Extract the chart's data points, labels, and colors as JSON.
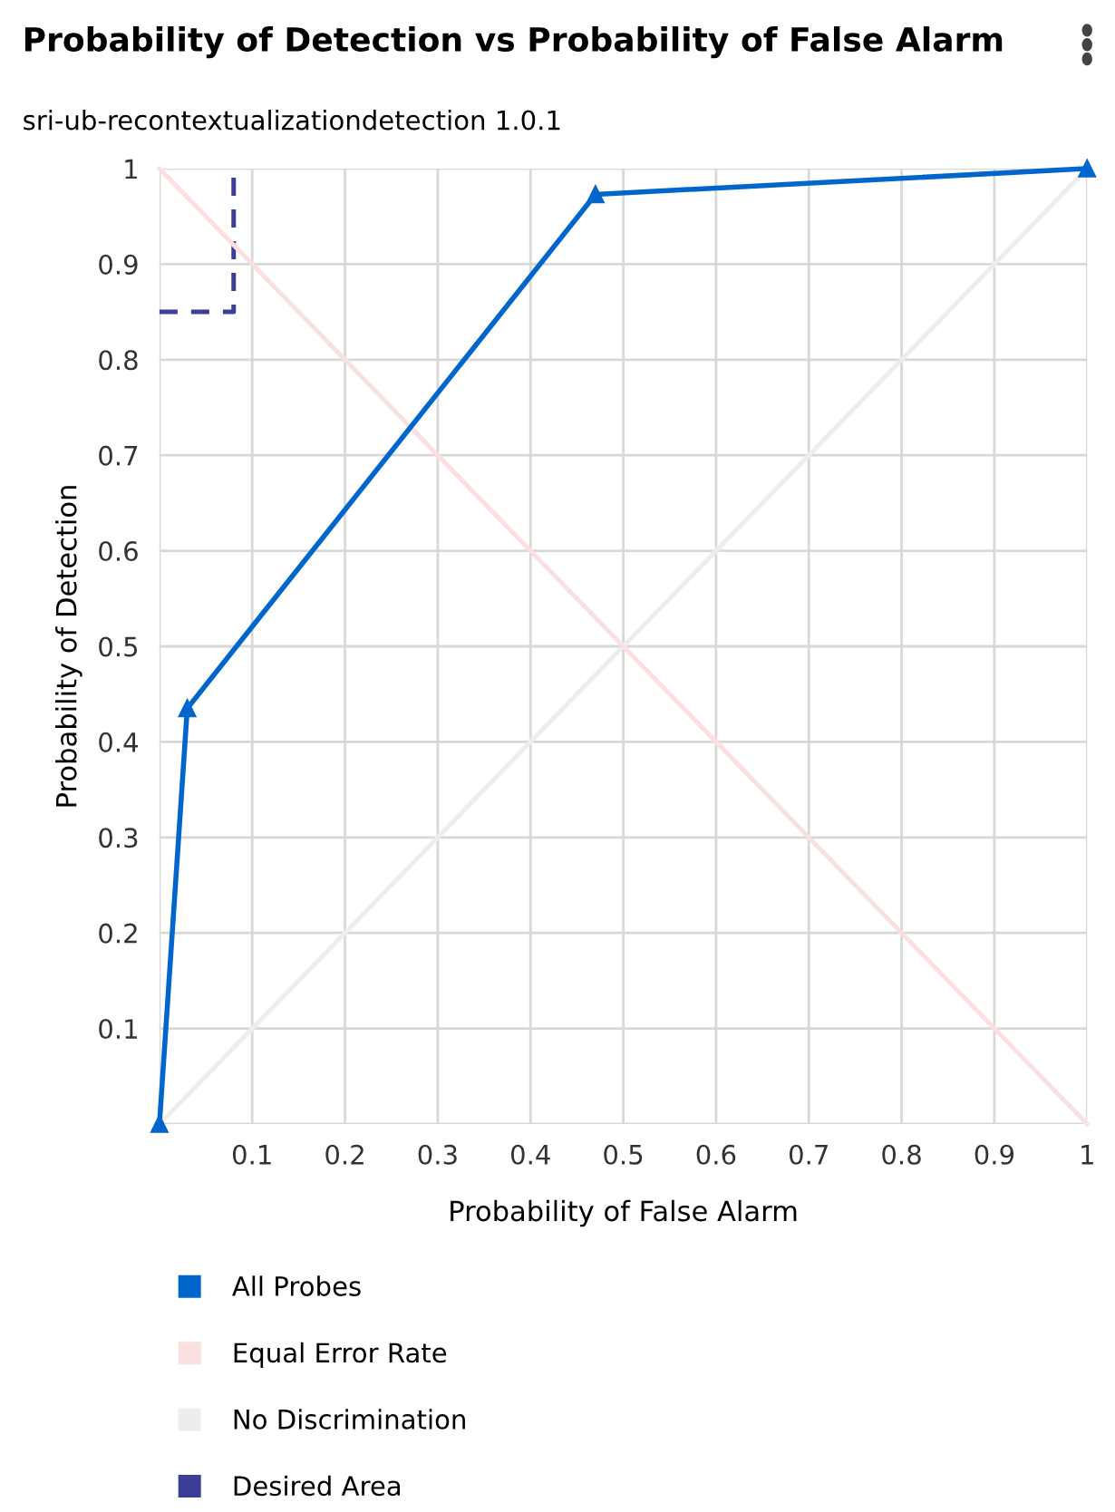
{
  "chart_data": {
    "type": "line",
    "title": "Probability of Detection vs Probability of False Alarm",
    "subtitle": "sri-ub-recontextualizationdetection 1.0.1",
    "xlabel": "Probability of False Alarm",
    "ylabel": "Probability of Detection",
    "xlim": [
      0,
      1
    ],
    "ylim": [
      0,
      1
    ],
    "xticks": [
      {
        "value": 0,
        "label": null
      },
      0.1,
      0.2,
      0.3,
      0.4,
      0.5,
      0.6,
      0.7,
      0.8,
      0.9,
      1
    ],
    "yticks": [
      {
        "value": 0,
        "label": null
      },
      0.1,
      0.2,
      0.3,
      0.4,
      0.5,
      0.6,
      0.7,
      0.8,
      0.9,
      1
    ],
    "grid": true,
    "legend": "bottom",
    "series": [
      {
        "name": "All Probes",
        "color": "#0066cc",
        "x": [
          0,
          0.03,
          0.47,
          1
        ],
        "values": [
          0,
          0.435,
          0.973,
          1
        ],
        "marker": "triangle",
        "line_style": "solid"
      },
      {
        "name": "Equal Error Rate",
        "color": "#fae0e0",
        "x": [
          0,
          1
        ],
        "values": [
          1,
          0
        ],
        "marker": "none",
        "line_style": "solid"
      },
      {
        "name": "No Discrimination",
        "color": "#ededed",
        "x": [
          0,
          1
        ],
        "values": [
          0,
          1
        ],
        "marker": "none",
        "line_style": "solid"
      },
      {
        "name": "Desired Area",
        "color": "#3c3d99",
        "x": [
          0,
          0.08,
          0.08
        ],
        "values": [
          0.85,
          0.85,
          1
        ],
        "marker": "none",
        "line_style": "dashed"
      }
    ]
  }
}
